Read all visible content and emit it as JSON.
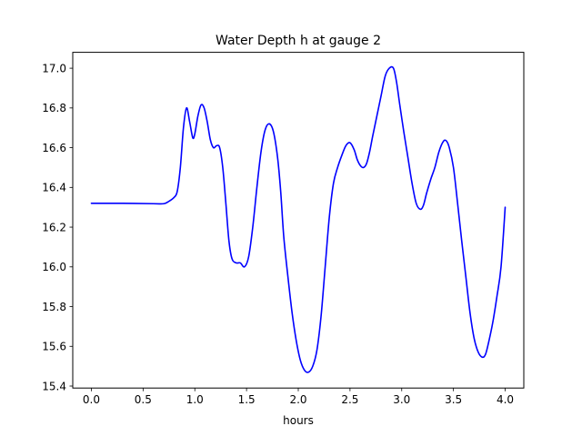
{
  "chart_data": {
    "type": "line",
    "title": "Water Depth h at gauge 2",
    "xlabel": "hours",
    "ylabel": "",
    "xlim": [
      -0.18,
      4.18
    ],
    "ylim": [
      15.39,
      17.08
    ],
    "xticks": [
      0.0,
      0.5,
      1.0,
      1.5,
      2.0,
      2.5,
      3.0,
      3.5,
      4.0
    ],
    "xtick_labels": [
      "0.0",
      "0.5",
      "1.0",
      "1.5",
      "2.0",
      "2.5",
      "3.0",
      "3.5",
      "4.0"
    ],
    "yticks": [
      15.4,
      15.6,
      15.8,
      16.0,
      16.2,
      16.4,
      16.6,
      16.8,
      17.0
    ],
    "ytick_labels": [
      "15.4",
      "15.6",
      "15.8",
      "16.0",
      "16.2",
      "16.4",
      "16.6",
      "16.8",
      "17.0"
    ],
    "grid": false,
    "series": [
      {
        "color": "#0000ff",
        "x": [
          0.0,
          0.3,
          0.6,
          0.7,
          0.75,
          0.8,
          0.83,
          0.86,
          0.89,
          0.92,
          0.95,
          0.98,
          1.0,
          1.03,
          1.06,
          1.09,
          1.12,
          1.15,
          1.18,
          1.21,
          1.24,
          1.27,
          1.3,
          1.33,
          1.36,
          1.4,
          1.44,
          1.48,
          1.52,
          1.56,
          1.6,
          1.64,
          1.68,
          1.72,
          1.76,
          1.8,
          1.83,
          1.86,
          1.9,
          1.94,
          1.98,
          2.02,
          2.06,
          2.1,
          2.14,
          2.18,
          2.22,
          2.26,
          2.3,
          2.34,
          2.38,
          2.42,
          2.46,
          2.5,
          2.54,
          2.57,
          2.6,
          2.63,
          2.66,
          2.69,
          2.72,
          2.76,
          2.8,
          2.84,
          2.88,
          2.92,
          2.95,
          2.98,
          3.02,
          3.06,
          3.1,
          3.14,
          3.18,
          3.21,
          3.24,
          3.28,
          3.32,
          3.36,
          3.4,
          3.43,
          3.46,
          3.5,
          3.54,
          3.58,
          3.62,
          3.66,
          3.7,
          3.74,
          3.78,
          3.81,
          3.84,
          3.88,
          3.92,
          3.96,
          4.0
        ],
        "y": [
          16.32,
          16.32,
          16.318,
          16.318,
          16.33,
          16.35,
          16.38,
          16.5,
          16.7,
          16.8,
          16.73,
          16.65,
          16.67,
          16.76,
          16.815,
          16.8,
          16.73,
          16.64,
          16.6,
          16.61,
          16.6,
          16.5,
          16.32,
          16.13,
          16.04,
          16.02,
          16.02,
          16.0,
          16.05,
          16.2,
          16.4,
          16.58,
          16.69,
          16.72,
          16.68,
          16.55,
          16.38,
          16.15,
          15.95,
          15.77,
          15.63,
          15.53,
          15.48,
          15.47,
          15.5,
          15.58,
          15.75,
          16.0,
          16.25,
          16.42,
          16.5,
          16.56,
          16.61,
          16.625,
          16.59,
          16.54,
          16.51,
          16.5,
          16.52,
          16.58,
          16.66,
          16.76,
          16.86,
          16.96,
          17.0,
          17.0,
          16.93,
          16.82,
          16.68,
          16.55,
          16.42,
          16.32,
          16.29,
          16.31,
          16.37,
          16.44,
          16.5,
          16.58,
          16.63,
          16.635,
          16.6,
          16.5,
          16.32,
          16.13,
          15.95,
          15.77,
          15.64,
          15.57,
          15.545,
          15.56,
          15.62,
          15.72,
          15.85,
          16.0,
          16.3
        ]
      }
    ]
  }
}
